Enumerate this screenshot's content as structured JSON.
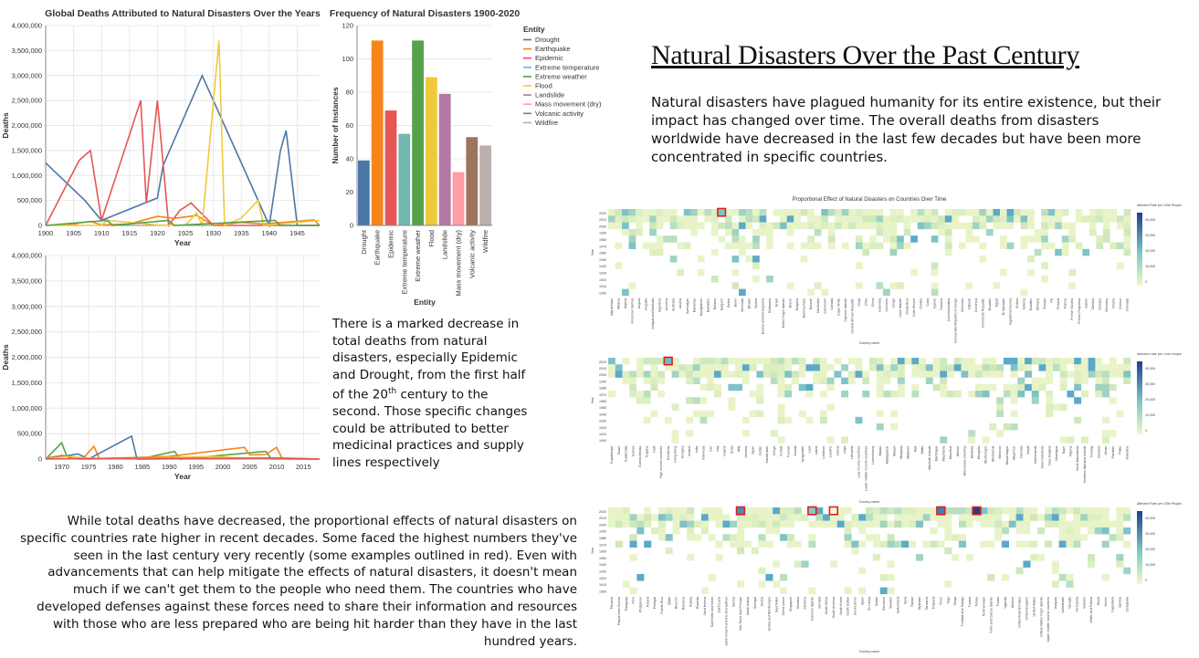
{
  "page_title": "Natural Disasters Over the Past Century",
  "intro_text": "Natural disasters have plagued humanity for its entire existence, but their impact has changed over time. The overall deaths from disasters worldwide have decreased in the last few decades but have been more concentrated in specific countries.",
  "note_decrease": {
    "before": "There is a marked decrease in total deaths from natural disasters, especially Epidemic and Drought, from the first half of the 20",
    "sup": "th",
    "after": " century to the second. Those specific changes could be attributed to better medicinal practices and supply lines respectively"
  },
  "note_proportional": "While total deaths have decreased, the proportional effects of natural disasters on specific countries rate higher in recent decades. Some faced the highest numbers they've seen in the last century very recently (some examples outlined in red). Even with advancements that can help mitigate the effects of natural disasters, it doesn't mean much if we can't get them to the people who need them. The countries who have developed defenses against these forces need to share their information and resources with those who are less prepared who are being hit harder than they have in the last hundred years.",
  "colors": {
    "Drought": "#4c78a8",
    "Earthquake": "#f58518",
    "Epidemic": "#e45756",
    "Extreme temperature": "#72b7b2",
    "Extreme weather": "#54a24b",
    "Flood": "#eeca3b",
    "Landslide": "#b279a2",
    "Mass movement (dry)": "#ff9da6",
    "Volcanic activity": "#9d755d",
    "Wildfire": "#bab0ac"
  },
  "chart_data": [
    {
      "type": "line",
      "title": "Global Deaths Attributed to Natural Disasters Over the Years",
      "xlabel": "Year",
      "ylabel": "Deaths",
      "xlim": [
        1900,
        1949
      ],
      "ylim": [
        0,
        4000000
      ],
      "x_ticks": [
        "1900",
        "1905",
        "1910",
        "1915",
        "1920",
        "1925",
        "1930",
        "1935",
        "1940",
        "1945"
      ],
      "y_ticks": [
        "0",
        "500,000",
        "1,000,000",
        "1,500,000",
        "2,000,000",
        "2,500,000",
        "3,000,000",
        "3,500,000",
        "4,000,000"
      ],
      "grid": true,
      "series": [
        {
          "name": "Drought",
          "points": [
            [
              1900,
              1250000
            ],
            [
              1907,
              500000
            ],
            [
              1910,
              100000
            ],
            [
              1920,
              550000
            ],
            [
              1921,
              1200000
            ],
            [
              1928,
              3000000
            ],
            [
              1940,
              0
            ],
            [
              1942,
              1500000
            ],
            [
              1943,
              1900000
            ],
            [
              1945,
              0
            ],
            [
              1949,
              0
            ]
          ]
        },
        {
          "name": "Epidemic",
          "points": [
            [
              1900,
              0
            ],
            [
              1906,
              1300000
            ],
            [
              1908,
              1500000
            ],
            [
              1910,
              100000
            ],
            [
              1917,
              2500000
            ],
            [
              1918,
              450000
            ],
            [
              1920,
              2500000
            ],
            [
              1922,
              0
            ],
            [
              1924,
              300000
            ],
            [
              1926,
              450000
            ],
            [
              1930,
              0
            ],
            [
              1949,
              0
            ]
          ]
        },
        {
          "name": "Earthquake",
          "points": [
            [
              1900,
              0
            ],
            [
              1905,
              20000
            ],
            [
              1906,
              50000
            ],
            [
              1908,
              80000
            ],
            [
              1910,
              10000
            ],
            [
              1915,
              30000
            ],
            [
              1920,
              180000
            ],
            [
              1923,
              140000
            ],
            [
              1927,
              200000
            ],
            [
              1930,
              0
            ],
            [
              1935,
              60000
            ],
            [
              1939,
              30000
            ],
            [
              1948,
              110000
            ],
            [
              1949,
              0
            ]
          ]
        },
        {
          "name": "Flood",
          "points": [
            [
              1900,
              0
            ],
            [
              1910,
              0
            ],
            [
              1911,
              100000
            ],
            [
              1920,
              10000
            ],
            [
              1925,
              0
            ],
            [
              1927,
              250000
            ],
            [
              1928,
              0
            ],
            [
              1931,
              3700000
            ],
            [
              1932,
              0
            ],
            [
              1935,
              150000
            ],
            [
              1938,
              500000
            ],
            [
              1939,
              0
            ],
            [
              1949,
              100000
            ]
          ]
        },
        {
          "name": "Extreme weather",
          "points": [
            [
              1900,
              0
            ],
            [
              1911,
              100000
            ],
            [
              1912,
              0
            ],
            [
              1922,
              100000
            ],
            [
              1923,
              0
            ],
            [
              1941,
              100000
            ],
            [
              1942,
              0
            ],
            [
              1949,
              0
            ]
          ]
        }
      ]
    },
    {
      "type": "line",
      "title": "",
      "xlabel": "Year",
      "ylabel": "Deaths",
      "xlim": [
        1967,
        2018
      ],
      "ylim": [
        0,
        4000000
      ],
      "x_ticks": [
        "1970",
        "1975",
        "1980",
        "1985",
        "1990",
        "1995",
        "2000",
        "2005",
        "2010",
        "2015"
      ],
      "y_ticks": [
        "0",
        "500,000",
        "1,000,000",
        "1,500,000",
        "2,000,000",
        "2,500,000",
        "3,000,000",
        "3,500,000",
        "4,000,000"
      ],
      "grid": true,
      "series": [
        {
          "name": "Extreme weather",
          "points": [
            [
              1967,
              0
            ],
            [
              1970,
              320000
            ],
            [
              1971,
              40000
            ],
            [
              1973,
              0
            ],
            [
              1985,
              10000
            ],
            [
              1991,
              150000
            ],
            [
              1992,
              0
            ],
            [
              2008,
              150000
            ],
            [
              2009,
              0
            ],
            [
              2018,
              0
            ]
          ]
        },
        {
          "name": "Earthquake",
          "points": [
            [
              1967,
              20000
            ],
            [
              1970,
              70000
            ],
            [
              1974,
              20000
            ],
            [
              1976,
              250000
            ],
            [
              1977,
              10000
            ],
            [
              1990,
              50000
            ],
            [
              2004,
              230000
            ],
            [
              2005,
              80000
            ],
            [
              2008,
              90000
            ],
            [
              2010,
              230000
            ],
            [
              2011,
              20000
            ],
            [
              2015,
              10000
            ],
            [
              2018,
              0
            ]
          ]
        },
        {
          "name": "Drought",
          "points": [
            [
              1967,
              0
            ],
            [
              1973,
              100000
            ],
            [
              1975,
              0
            ],
            [
              1983,
              450000
            ],
            [
              1984,
              0
            ],
            [
              2011,
              20000
            ],
            [
              2012,
              0
            ],
            [
              2018,
              0
            ]
          ]
        },
        {
          "name": "Flood",
          "points": [
            [
              1967,
              0
            ],
            [
              1971,
              50000
            ],
            [
              1975,
              20000
            ],
            [
              1980,
              10000
            ],
            [
              1998,
              50000
            ],
            [
              2004,
              20000
            ],
            [
              2018,
              0
            ]
          ]
        },
        {
          "name": "Epidemic",
          "points": [
            [
              1967,
              0
            ],
            [
              1975,
              10000
            ],
            [
              1985,
              15000
            ],
            [
              2000,
              15000
            ],
            [
              2010,
              20000
            ],
            [
              2018,
              0
            ]
          ]
        }
      ]
    },
    {
      "type": "bar",
      "title": "Frequency of Natural Disasters 1900-2020",
      "xlabel": "Entity",
      "ylabel": "Number of Instances",
      "ylim": [
        0,
        120
      ],
      "y_ticks": [
        "0",
        "20",
        "40",
        "60",
        "80",
        "100",
        "120"
      ],
      "categories": [
        "Drought",
        "Earthquake",
        "Epidemic",
        "Extreme temperature",
        "Extreme weather",
        "Flood",
        "Landslide",
        "Mass movement (dry)",
        "Volcanic activity",
        "Wildfire"
      ],
      "values": [
        39,
        111,
        69,
        55,
        111,
        89,
        79,
        32,
        53,
        48
      ],
      "legend": {
        "title": "Entity",
        "position": "right"
      }
    },
    {
      "type": "heatmap",
      "title": "Proportional Effect of Natural Disasters on Countries Over Time",
      "xlabel": "Country name",
      "ylabel": "Year",
      "legend_title": "Affected Rate per 100k People",
      "legend_ticks": [
        "40,000",
        "30,000",
        "20,000",
        "10,000",
        "0"
      ],
      "y_ticks": [
        "2020",
        "2010",
        "2000",
        "1990",
        "1980",
        "1970",
        "1960",
        "1950",
        "1940",
        "1930",
        "1920",
        "1910",
        "1900"
      ],
      "highlight": "red outline marks a country's highest value in recent years",
      "panels": [
        {
          "countries": [
            "Afghanistan",
            "Albania",
            "Algeria",
            "American Samoa",
            "Angola",
            "Anguilla",
            "Antigua and Barbuda",
            "Argentina",
            "Armenia",
            "Australia",
            "Austria",
            "Azerbaijan",
            "Bahamas",
            "Bangladesh",
            "Barbados",
            "Belarus",
            "Belgium",
            "Belize",
            "Benin",
            "Bermuda",
            "Bhutan",
            "Bolivia",
            "Bosnia and Herzegovina",
            "Botswana",
            "Brazil",
            "British Virgin Islands",
            "Brunei",
            "Bulgaria",
            "Burkina Faso",
            "Burundi",
            "Cambodia",
            "Cameroon",
            "Canada",
            "Cape Verde",
            "Cayman Islands",
            "Central African Republic",
            "Chad",
            "Chile",
            "China",
            "Colombia",
            "Comoros",
            "Congo",
            "Cook Islands",
            "Costa Rica",
            "Cote d'Ivoire",
            "Croatia",
            "Cuba",
            "Cyprus",
            "Czechia",
            "Czechoslovakia",
            "Democratic Republic of Congo",
            "Denmark",
            "Djibouti",
            "Dominica",
            "Dominican Republic",
            "Ecuador",
            "Egypt",
            "El Salvador",
            "Equatorial Guinea",
            "Eritrea",
            "Estonia",
            "Eswatini",
            "Ethiopia",
            "Europe",
            "Fiji",
            "Finland",
            "France",
            "French Guiana",
            "French Polynesia",
            "Gabon",
            "Gambia",
            "Georgia",
            "Germany",
            "Ghana",
            "Greece",
            "Grenada"
          ]
        },
        {
          "countries": [
            "Guadeloupe",
            "Guam",
            "Guatemala",
            "Guinea",
            "Guinea-Bissau",
            "Guyana",
            "Haiti",
            "High income countries",
            "Honduras",
            "Hong Kong",
            "Hungary",
            "Iceland",
            "India",
            "Indonesia",
            "Iran",
            "Iraq",
            "Ireland",
            "Israel",
            "Italy",
            "Jamaica",
            "Japan",
            "Jordan",
            "Kazakhstan",
            "Kenya",
            "Kiribati",
            "Kosovo",
            "Kuwait",
            "Kyrgyzstan",
            "Laos",
            "Latvia",
            "Lebanon",
            "Lesotho",
            "Liberia",
            "Libya",
            "Lithuania",
            "Low income countries",
            "Lower middle income countries",
            "Luxembourg",
            "Macao",
            "Madagascar",
            "Malawi",
            "Malaysia",
            "Maldives",
            "Mali",
            "Malta",
            "Marshall Islands",
            "Martinique",
            "Mauritania",
            "Mauritius",
            "Mexico",
            "Micronesia (country)",
            "Moldova",
            "Mongolia",
            "Montenegro",
            "Montserrat",
            "Morocco",
            "Mozambique",
            "Myanmar",
            "Namibia",
            "Nepal",
            "Netherlands",
            "New Caledonia",
            "New Zealand",
            "Nicaragua",
            "Niger",
            "Nigeria",
            "North Macedonia",
            "Northern Mariana Islands",
            "Norway",
            "Oceania",
            "Oman",
            "Pakistan",
            "Palau",
            "Palestine"
          ]
        },
        {
          "countries": [
            "Panama",
            "Papua New Guinea",
            "Paraguay",
            "Peru",
            "Philippines",
            "Poland",
            "Portugal",
            "Puerto Rico",
            "Qatar",
            "Reunion",
            "Romania",
            "Russia",
            "Rwanda",
            "Saint Helena",
            "Saint Kitts and Nevis",
            "Saint Lucia",
            "Saint Vincent and the Grenadines",
            "Samoa",
            "Sao Tome and Principe",
            "Saudi Arabia",
            "Senegal",
            "Serbia",
            "Serbia and Montenegro",
            "Seychelles",
            "Sierra Leone",
            "Singapore",
            "Slovakia",
            "Slovenia",
            "Solomon Islands",
            "Somalia",
            "South Africa",
            "South America",
            "South Korea",
            "South Sudan",
            "Soviet Union",
            "Spain",
            "Sri Lanka",
            "Sudan",
            "Suriname",
            "Sweden",
            "Switzerland",
            "Syria",
            "Taiwan",
            "Tajikistan",
            "Tanzania",
            "Thailand",
            "Timor",
            "Togo",
            "Tonga",
            "Trinidad and Tobago",
            "Tunisia",
            "Turkey",
            "Turkmenistan",
            "Turks and Caicos Islands",
            "Tuvalu",
            "Uganda",
            "Ukraine",
            "United Arab Emirates",
            "United Kingdom",
            "United States",
            "United States Virgin Islands",
            "Upper middle income countries",
            "Uruguay",
            "Uzbekistan",
            "Vanuatu",
            "Venezuela",
            "Vietnam",
            "Wallis and Futuna",
            "World",
            "Yemen",
            "Yugoslavia",
            "Zambia",
            "Zimbabwe"
          ]
        }
      ]
    }
  ]
}
